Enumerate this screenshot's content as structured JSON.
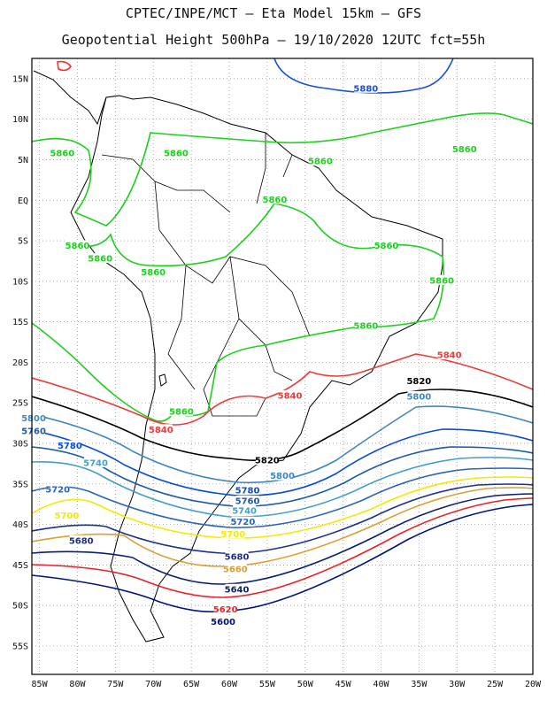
{
  "header": {
    "title_line1": "CPTEC/INPE/MCT –  Eta Model 15km – GFS",
    "title_line2": "Geopotential Height 500hPa – 19/10/2020 12UTC fct=55h"
  },
  "axes": {
    "lat_ticks": [
      "15N",
      "10N",
      "5N",
      "EQ",
      "5S",
      "10S",
      "15S",
      "20S",
      "25S",
      "30S",
      "35S",
      "40S",
      "45S",
      "50S",
      "55S"
    ],
    "lon_ticks": [
      "85W",
      "80W",
      "75W",
      "70W",
      "65W",
      "60W",
      "55W",
      "50W",
      "45W",
      "40W",
      "35W",
      "30W",
      "25W",
      "20W"
    ],
    "lat_range": [
      17.5,
      -58.5
    ],
    "lon_range": [
      -86,
      -20
    ],
    "grid": "dotted"
  },
  "colors": {
    "coast": "#000000",
    "5580": "#ff2a2a",
    "5600": "#00147a",
    "5620": "#e8222a",
    "5640": "#0a1f6e",
    "5660": "#d9a030",
    "5680": "#1b2f8f",
    "5700": "#f2ea00",
    "5720": "#2a64b8",
    "5740": "#43a0c8",
    "5760": "#1f5aa8",
    "5780": "#0a4cd8",
    "5800": "#3e88c0",
    "5820": "#000000",
    "5840": "#ea3c3c",
    "5860": "#1ed01e",
    "5880": "#1a4fd6"
  },
  "chart_data": {
    "type": "contour-map",
    "variable": "Geopotential Height 500hPa",
    "levels": [
      5600,
      5620,
      5640,
      5660,
      5680,
      5700,
      5720,
      5740,
      5760,
      5780,
      5800,
      5820,
      5840,
      5860,
      5880
    ],
    "labels": [
      {
        "level": "5880",
        "lon": -42,
        "lat": 13.7
      },
      {
        "level": "5860",
        "lon": -82,
        "lat": 5.7
      },
      {
        "level": "5860",
        "lon": -67,
        "lat": 5.7
      },
      {
        "level": "5860",
        "lon": -48,
        "lat": 4.7
      },
      {
        "level": "5860",
        "lon": -29,
        "lat": 6.2
      },
      {
        "level": "5860",
        "lon": -54,
        "lat": 0
      },
      {
        "level": "5860",
        "lon": -80,
        "lat": -5.7
      },
      {
        "level": "5860",
        "lon": -77,
        "lat": -7.3
      },
      {
        "level": "5860",
        "lon": -39.3,
        "lat": -5.7
      },
      {
        "level": "5860",
        "lon": -70,
        "lat": -9
      },
      {
        "level": "5860",
        "lon": -32,
        "lat": -10
      },
      {
        "level": "5860",
        "lon": -42,
        "lat": -15.6
      },
      {
        "level": "5860",
        "lon": -66.3,
        "lat": -26.2
      },
      {
        "level": "5840",
        "lon": -31,
        "lat": -19.2
      },
      {
        "level": "5840",
        "lon": -52,
        "lat": -24.2
      },
      {
        "level": "5840",
        "lon": -69,
        "lat": -28.4
      },
      {
        "level": "5820",
        "lon": -35,
        "lat": -22.4
      },
      {
        "level": "5820",
        "lon": -55,
        "lat": -32.2
      },
      {
        "level": "5800",
        "lon": -35,
        "lat": -24.3
      },
      {
        "level": "5800",
        "lon": -53,
        "lat": -34.1
      },
      {
        "level": "5800",
        "lon": -86,
        "lat": -27
      },
      {
        "level": "5780",
        "lon": -57.6,
        "lat": -35.9
      },
      {
        "level": "5780",
        "lon": -81,
        "lat": -30.4
      },
      {
        "level": "5760",
        "lon": -86.3,
        "lat": -28.6
      },
      {
        "level": "5760",
        "lon": -57.6,
        "lat": -37.2
      },
      {
        "level": "5740",
        "lon": -77.6,
        "lat": -32.5
      },
      {
        "level": "5740",
        "lon": -58,
        "lat": -38.4
      },
      {
        "level": "5720",
        "lon": -82.6,
        "lat": -35.8
      },
      {
        "level": "5720",
        "lon": -58.2,
        "lat": -39.8
      },
      {
        "level": "5700",
        "lon": -81.4,
        "lat": -39
      },
      {
        "level": "5700",
        "lon": -59.5,
        "lat": -41.3
      },
      {
        "level": "5680",
        "lon": -79.5,
        "lat": -42.1
      },
      {
        "level": "5680",
        "lon": -59,
        "lat": -44.1
      },
      {
        "level": "5660",
        "lon": -59.2,
        "lat": -45.6
      },
      {
        "level": "5640",
        "lon": -59,
        "lat": -48.1
      },
      {
        "level": "5620",
        "lon": -60.5,
        "lat": -50.6
      },
      {
        "level": "5600",
        "lon": -60.8,
        "lat": -52.1
      }
    ]
  }
}
